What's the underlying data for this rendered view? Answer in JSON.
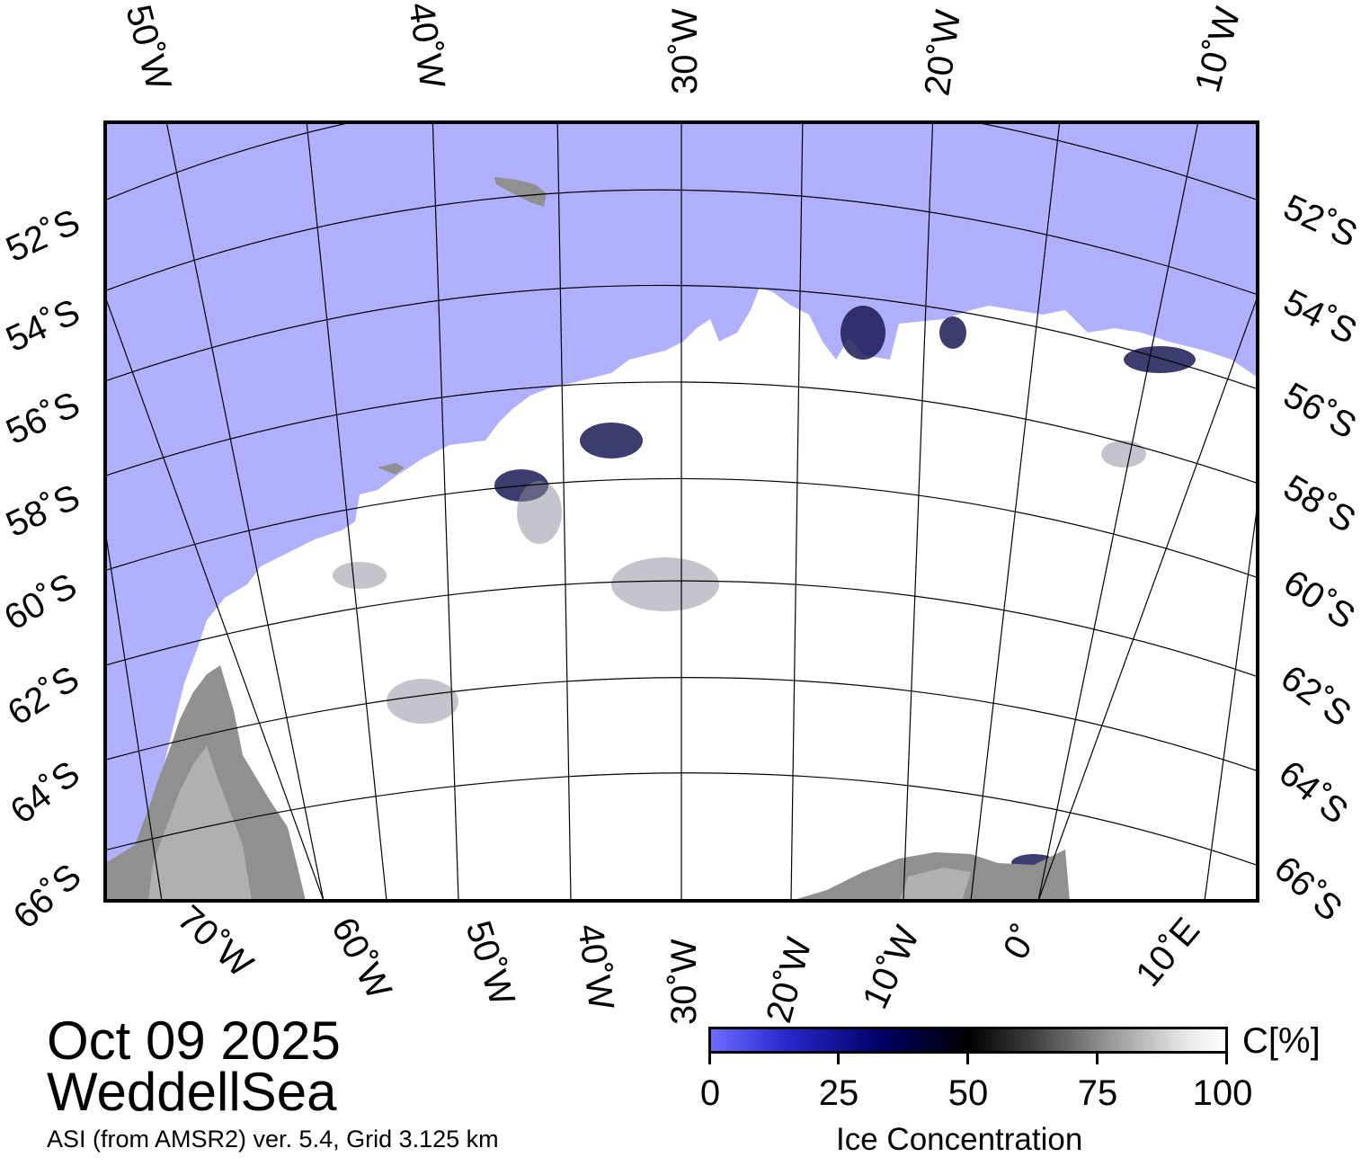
{
  "map": {
    "colors": {
      "ocean": "#b0b0ff",
      "ice": "#ffffff",
      "land": "#909090",
      "land_light": "#b0b0b0",
      "frame": "#000000"
    },
    "top_lon_labels": [
      "50˚W",
      "40˚W",
      "30˚W",
      "20˚W",
      "10˚W"
    ],
    "bottom_lon_labels": [
      "70˚W",
      "60˚W",
      "50˚W",
      "40˚W",
      "30˚W",
      "20˚W",
      "10˚W",
      "0˚",
      "10˚E"
    ],
    "lat_labels": [
      "52˚S",
      "54˚S",
      "56˚S",
      "58˚S",
      "60˚S",
      "62˚S",
      "64˚S",
      "66˚S"
    ]
  },
  "title": {
    "date": "Oct 09 2025",
    "region": "WeddellSea",
    "caption": "ASI (from AMSR2) ver. 5.4,  Grid 3.125 km"
  },
  "legend": {
    "unit": "C[%]",
    "ticks": [
      "0",
      "25",
      "50",
      "75",
      "100"
    ],
    "title": "Ice Concentration",
    "colorscale": [
      "#6c6cff",
      "#000066",
      "#000000",
      "#9a9a9a",
      "#ffffff"
    ]
  }
}
